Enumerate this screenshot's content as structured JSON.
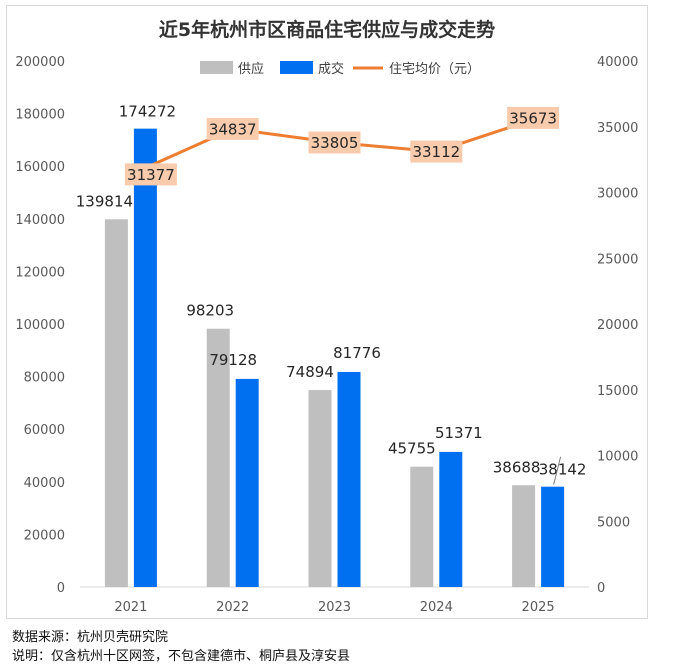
{
  "chart_data": {
    "type": "bar+line",
    "title": "近5年杭州市区商品住宅供应与成交走势",
    "categories": [
      "2021",
      "2022",
      "2023",
      "2024",
      "2025"
    ],
    "series": [
      {
        "name": "供应",
        "type": "bar",
        "axis": "left",
        "color": "#bfbfbf",
        "values": [
          139814,
          98203,
          74894,
          45755,
          38688
        ]
      },
      {
        "name": "成交",
        "type": "bar",
        "axis": "left",
        "color": "#0070f0",
        "values": [
          174272,
          79128,
          81776,
          51371,
          38142
        ]
      },
      {
        "name": "住宅均价（元）",
        "type": "line",
        "axis": "right",
        "color": "#ed7d31",
        "label_bg": "#f8cbad",
        "values": [
          31377,
          34837,
          33805,
          33112,
          35673
        ]
      }
    ],
    "left_axis": {
      "min": 0,
      "max": 200000,
      "step": 20000,
      "ticks": [
        "0",
        "20000",
        "40000",
        "60000",
        "80000",
        "100000",
        "120000",
        "140000",
        "160000",
        "180000",
        "200000"
      ]
    },
    "right_axis": {
      "min": 0,
      "max": 40000,
      "step": 5000,
      "ticks": [
        "0",
        "5000",
        "10000",
        "15000",
        "20000",
        "25000",
        "30000",
        "35000",
        "40000"
      ]
    },
    "legend": [
      "供应",
      "成交",
      "住宅均价（元）"
    ],
    "legend_position": "top"
  },
  "footnotes": {
    "source": "数据来源：杭州贝壳研究院",
    "note": "说明：仅含杭州十区网签，不包含建德市、桐庐县及淳安县"
  }
}
